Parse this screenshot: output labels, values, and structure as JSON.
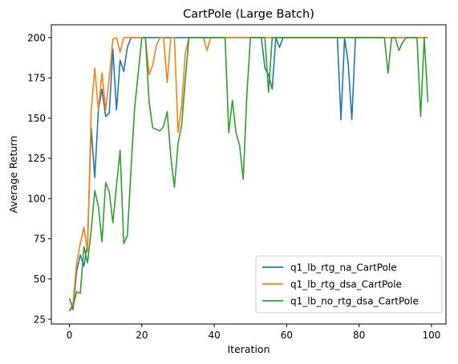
{
  "chart_data": {
    "type": "line",
    "title": "CartPole (Large Batch)",
    "xlabel": "Iteration",
    "ylabel": "Average Return",
    "xlim": [
      -5,
      104
    ],
    "ylim": [
      22,
      208
    ],
    "x_ticks": [
      0,
      20,
      40,
      60,
      80,
      100
    ],
    "y_ticks": [
      25,
      50,
      75,
      100,
      125,
      150,
      175,
      200
    ],
    "grid": false,
    "legend_position": "lower-right",
    "series": [
      {
        "name": "q1_lb_rtg_na_CartPole",
        "color": "#1f77b4",
        "x": [
          0,
          1,
          2,
          3,
          4,
          5,
          6,
          7,
          8,
          9,
          10,
          11,
          12,
          13,
          14,
          15,
          16,
          17,
          18,
          19,
          20,
          21,
          22,
          23,
          24,
          25,
          26,
          27,
          28,
          29,
          30,
          31,
          32,
          33,
          34,
          35,
          36,
          37,
          38,
          39,
          40,
          41,
          42,
          43,
          44,
          45,
          46,
          47,
          48,
          49,
          50,
          51,
          52,
          53,
          54,
          55,
          56,
          57,
          58,
          59,
          60,
          61,
          62,
          63,
          64,
          65,
          66,
          67,
          68,
          69,
          70,
          71,
          72,
          73,
          74,
          75,
          76,
          77,
          78,
          79,
          80,
          81,
          82,
          83,
          84,
          85,
          86,
          87,
          88,
          89,
          90,
          91,
          92,
          93,
          94,
          95,
          96,
          97,
          98,
          99
        ],
        "values": [
          38,
          31,
          55,
          65,
          58,
          72,
          144,
          113,
          155,
          168,
          151,
          153,
          193,
          155,
          186,
          179,
          194,
          200,
          200,
          200,
          200,
          200,
          200,
          200,
          200,
          200,
          200,
          200,
          200,
          200,
          200,
          200,
          200,
          200,
          200,
          200,
          200,
          200,
          200,
          200,
          200,
          200,
          200,
          200,
          200,
          200,
          200,
          200,
          200,
          200,
          200,
          200,
          200,
          200,
          181,
          177,
          168,
          200,
          194,
          200,
          200,
          200,
          200,
          200,
          200,
          200,
          200,
          200,
          200,
          200,
          200,
          200,
          200,
          200,
          200,
          149,
          200,
          184,
          149,
          200,
          200,
          200,
          200,
          200,
          200,
          200,
          200,
          200,
          200,
          200,
          200,
          200,
          200,
          200,
          200,
          200,
          200,
          200,
          200,
          200
        ]
      },
      {
        "name": "q1_lb_rtg_dsa_CartPole",
        "color": "#ff7f0e",
        "x": [
          0,
          1,
          2,
          3,
          4,
          5,
          6,
          7,
          8,
          9,
          10,
          11,
          12,
          13,
          14,
          15,
          16,
          17,
          18,
          19,
          20,
          21,
          22,
          23,
          24,
          25,
          26,
          27,
          28,
          29,
          30,
          31,
          32,
          33,
          34,
          35,
          36,
          37,
          38,
          39,
          40,
          41,
          42,
          43,
          44,
          45,
          46,
          47,
          48,
          49,
          50,
          51,
          52,
          53,
          54,
          55,
          56,
          57,
          58,
          59,
          60,
          61,
          62,
          63,
          64,
          65,
          66,
          67,
          68,
          69,
          70,
          71,
          72,
          73,
          74,
          75,
          76,
          77,
          78,
          79,
          80,
          81,
          82,
          83,
          84,
          85,
          86,
          87,
          88,
          89,
          90,
          91,
          92,
          93,
          94,
          95,
          96,
          97,
          98,
          99
        ],
        "values": [
          30,
          35,
          60,
          72,
          82,
          67,
          154,
          181,
          155,
          178,
          155,
          175,
          199,
          200,
          191,
          200,
          200,
          200,
          200,
          200,
          200,
          200,
          177,
          183,
          195,
          200,
          200,
          172,
          200,
          200,
          141,
          158,
          190,
          200,
          200,
          200,
          200,
          200,
          192,
          200,
          200,
          200,
          200,
          200,
          200,
          200,
          200,
          200,
          200,
          200,
          200,
          200,
          200,
          200,
          200,
          200,
          200,
          200,
          200,
          200,
          200,
          200,
          200,
          200,
          200,
          200,
          200,
          200,
          200,
          200,
          200,
          200,
          200,
          200,
          200,
          200,
          200,
          200,
          200,
          200,
          200,
          200,
          200,
          200,
          200,
          200,
          200,
          200,
          200,
          200,
          200,
          200,
          200,
          200,
          200,
          200,
          200,
          200,
          200,
          200
        ]
      },
      {
        "name": "q1_lb_no_rtg_dsa_CartPole",
        "color": "#2ca02c",
        "x": [
          0,
          1,
          2,
          3,
          4,
          5,
          6,
          7,
          8,
          9,
          10,
          11,
          12,
          13,
          14,
          15,
          16,
          17,
          18,
          19,
          20,
          21,
          22,
          23,
          24,
          25,
          26,
          27,
          28,
          29,
          30,
          31,
          32,
          33,
          34,
          35,
          36,
          37,
          38,
          39,
          40,
          41,
          42,
          43,
          44,
          45,
          46,
          47,
          48,
          49,
          50,
          51,
          52,
          53,
          54,
          55,
          56,
          57,
          58,
          59,
          60,
          61,
          62,
          63,
          64,
          65,
          66,
          67,
          68,
          69,
          70,
          71,
          72,
          73,
          74,
          75,
          76,
          77,
          78,
          79,
          80,
          81,
          82,
          83,
          84,
          85,
          86,
          87,
          88,
          89,
          90,
          91,
          92,
          93,
          94,
          95,
          96,
          97,
          98,
          99
        ],
        "values": [
          30,
          33,
          42,
          41,
          70,
          60,
          80,
          105,
          95,
          73,
          110,
          104,
          85,
          108,
          130,
          72,
          77,
          118,
          156,
          178,
          200,
          200,
          160,
          144,
          143,
          142,
          145,
          154,
          126,
          107,
          134,
          146,
          174,
          200,
          200,
          200,
          200,
          200,
          200,
          200,
          200,
          200,
          200,
          200,
          141,
          161,
          141,
          133,
          112,
          164,
          200,
          200,
          200,
          200,
          200,
          166,
          200,
          200,
          200,
          200,
          200,
          200,
          200,
          200,
          200,
          200,
          200,
          200,
          200,
          200,
          200,
          200,
          200,
          200,
          200,
          200,
          200,
          200,
          200,
          200,
          200,
          200,
          200,
          200,
          200,
          200,
          200,
          200,
          178,
          200,
          200,
          192,
          197,
          200,
          200,
          200,
          200,
          151,
          200,
          160
        ]
      }
    ]
  }
}
